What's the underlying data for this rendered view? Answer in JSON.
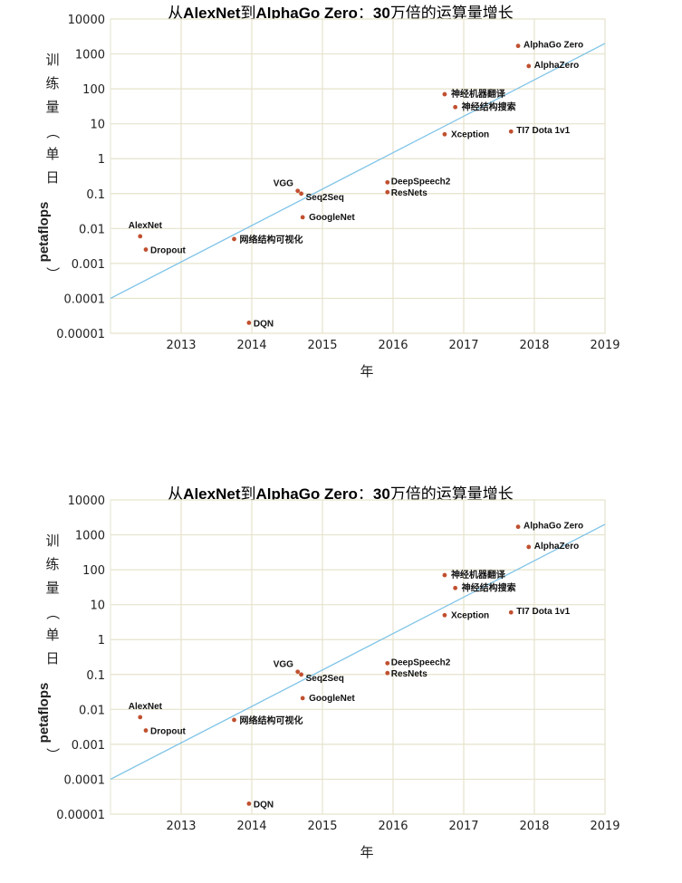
{
  "chart_data": [
    {
      "type": "scatter",
      "title": "从AlexNet到AlphaGo Zero：30万倍的运算量增长",
      "title_parts": [
        {
          "text": "从",
          "bold": false
        },
        {
          "text": "AlexNet",
          "bold": true
        },
        {
          "text": "到",
          "bold": false
        },
        {
          "text": "AlphaGo Zero",
          "bold": true
        },
        {
          "text": "：",
          "bold": false
        },
        {
          "text": "30",
          "bold": true
        },
        {
          "text": "万倍的运算量增长",
          "bold": false
        }
      ],
      "xlabel": "年",
      "ylabel_cjk_1": "训练量",
      "ylabel_paren_open": "（",
      "ylabel_cjk_2": "单日",
      "ylabel_latin": "petaflops",
      "ylabel_paren_close": "）",
      "ylabel": "训练量（单日petaflops）",
      "yscale": "log",
      "xlim": [
        2012.0,
        2019.0
      ],
      "ylim": [
        1e-05,
        10000
      ],
      "x_ticks": [
        "2013",
        "2014",
        "2015",
        "2016",
        "2017",
        "2018",
        "2019"
      ],
      "y_ticks": [
        "10000",
        "1000",
        "100",
        "10",
        "1",
        "0.1",
        "0.01",
        "0.001",
        "0.0001",
        "0.00001"
      ],
      "grid": true,
      "point_color": "#c0502f",
      "trend_color": "#7fc4e8",
      "grid_color": "#e6e3cc",
      "trend": {
        "x": [
          2012.0,
          2019.0
        ],
        "y": [
          0.0001,
          2000
        ]
      },
      "points": [
        {
          "label": "AlexNet",
          "x": 2012.42,
          "y": 0.006
        },
        {
          "label": "Dropout",
          "x": 2012.5,
          "y": 0.0025
        },
        {
          "label": "网络结构可视化",
          "x": 2013.75,
          "y": 0.005
        },
        {
          "label": "DQN",
          "x": 2013.96,
          "y": 2e-05
        },
        {
          "label": "VGG",
          "x": 2014.65,
          "y": 0.12
        },
        {
          "label": "Seq2Seq",
          "x": 2014.7,
          "y": 0.1
        },
        {
          "label": "GoogleNet",
          "x": 2014.72,
          "y": 0.021
        },
        {
          "label": "DeepSpeech2",
          "x": 2015.92,
          "y": 0.21
        },
        {
          "label": "ResNets",
          "x": 2015.92,
          "y": 0.11
        },
        {
          "label": "神经机器翻译",
          "x": 2016.73,
          "y": 70
        },
        {
          "label": "神经结构搜索",
          "x": 2016.88,
          "y": 30
        },
        {
          "label": "Xception",
          "x": 2016.73,
          "y": 5
        },
        {
          "label": "TI7 Dota 1v1",
          "x": 2017.67,
          "y": 6
        },
        {
          "label": "AlphaGo Zero",
          "x": 2017.77,
          "y": 1700
        },
        {
          "label": "AlphaZero",
          "x": 2017.92,
          "y": 450
        }
      ]
    },
    {
      "type": "scatter",
      "title": "从AlexNet到AlphaGo Zero：30万倍的运算量增长",
      "title_parts": [
        {
          "text": "从",
          "bold": false
        },
        {
          "text": "AlexNet",
          "bold": true
        },
        {
          "text": "到",
          "bold": false
        },
        {
          "text": "AlphaGo Zero",
          "bold": true
        },
        {
          "text": "：",
          "bold": false
        },
        {
          "text": "30",
          "bold": true
        },
        {
          "text": "万倍的运算量增长",
          "bold": false
        }
      ],
      "xlabel": "年",
      "ylabel_cjk_1": "训练量",
      "ylabel_paren_open": "（",
      "ylabel_cjk_2": "单日",
      "ylabel_latin": "petaflops",
      "ylabel_paren_close": "）",
      "ylabel": "训练量（单日petaflops）",
      "yscale": "log",
      "xlim": [
        2012.0,
        2019.0
      ],
      "ylim": [
        1e-05,
        10000
      ],
      "x_ticks": [
        "2013",
        "2014",
        "2015",
        "2016",
        "2017",
        "2018",
        "2019"
      ],
      "y_ticks": [
        "10000",
        "1000",
        "100",
        "10",
        "1",
        "0.1",
        "0.01",
        "0.001",
        "0.0001",
        "0.00001"
      ],
      "grid": true,
      "point_color": "#c0502f",
      "trend_color": "#7fc4e8",
      "grid_color": "#e6e3cc",
      "trend": {
        "x": [
          2012.0,
          2019.0
        ],
        "y": [
          0.0001,
          2000
        ]
      },
      "points": [
        {
          "label": "AlexNet",
          "x": 2012.42,
          "y": 0.006
        },
        {
          "label": "Dropout",
          "x": 2012.5,
          "y": 0.0025
        },
        {
          "label": "网络结构可视化",
          "x": 2013.75,
          "y": 0.005
        },
        {
          "label": "DQN",
          "x": 2013.96,
          "y": 2e-05
        },
        {
          "label": "VGG",
          "x": 2014.65,
          "y": 0.12
        },
        {
          "label": "Seq2Seq",
          "x": 2014.7,
          "y": 0.1
        },
        {
          "label": "GoogleNet",
          "x": 2014.72,
          "y": 0.021
        },
        {
          "label": "DeepSpeech2",
          "x": 2015.92,
          "y": 0.21
        },
        {
          "label": "ResNets",
          "x": 2015.92,
          "y": 0.11
        },
        {
          "label": "神经机器翻译",
          "x": 2016.73,
          "y": 70
        },
        {
          "label": "神经结构搜索",
          "x": 2016.88,
          "y": 30
        },
        {
          "label": "Xception",
          "x": 2016.73,
          "y": 5
        },
        {
          "label": "TI7 Dota 1v1",
          "x": 2017.67,
          "y": 6
        },
        {
          "label": "AlphaGo Zero",
          "x": 2017.77,
          "y": 1700
        },
        {
          "label": "AlphaZero",
          "x": 2017.92,
          "y": 450
        }
      ]
    }
  ]
}
